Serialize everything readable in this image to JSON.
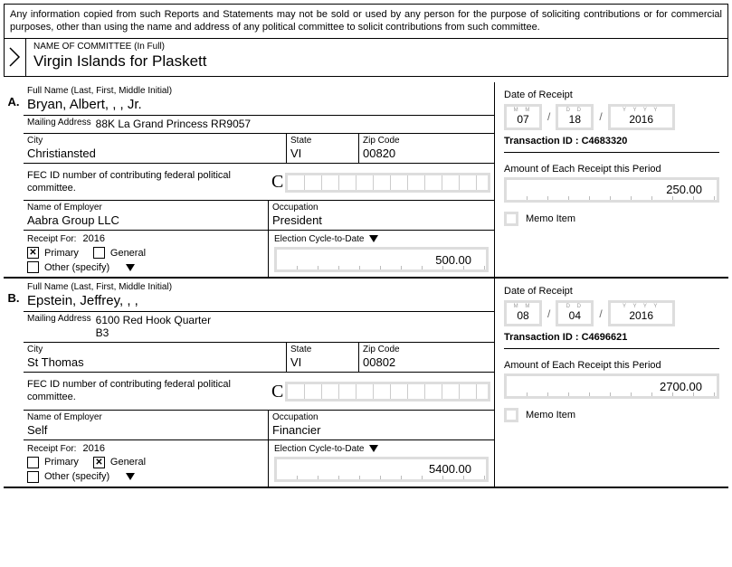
{
  "disclaimer": "Any information copied from such Reports and Statements may not be sold or used by any person for the purpose of soliciting contributions or for commercial purposes, other than using the name and address of any political committee to solicit contributions from such committee.",
  "committee": {
    "label": "NAME OF COMMITTEE (In Full)",
    "name": "Virgin Islands for Plaskett"
  },
  "labels": {
    "full_name": "Full Name (Last, First, Middle Initial)",
    "mailing": "Mailing Address",
    "city": "City",
    "state": "State",
    "zip": "Zip Code",
    "fec_id": "FEC ID number of contributing federal political committee.",
    "employer": "Name of Employer",
    "occupation": "Occupation",
    "receipt_for": "Receipt For:",
    "primary": "Primary",
    "general": "General",
    "other": "Other (specify)",
    "ecd": "Election Cycle-to-Date",
    "date_receipt": "Date of Receipt",
    "txn_id": "Transaction ID :",
    "amount_each": "Amount of Each Receipt this Period",
    "memo": "Memo Item",
    "m_hint": "M   M",
    "d_hint": "D   D",
    "y_hint": "Y  Y  Y  Y"
  },
  "entries": [
    {
      "letter": "A.",
      "name": "Bryan, Albert, , , Jr.",
      "mailing": "88K La Grand Princess RR9057",
      "city": "Christiansted",
      "state": "VI",
      "zip": "00820",
      "employer": "Aabra Group LLC",
      "occupation": "President",
      "receipt_year": "2016",
      "primary_checked": true,
      "general_checked": false,
      "ecd": "500.00",
      "date": {
        "m": "07",
        "d": "18",
        "y": "2016"
      },
      "txn": "C4683320",
      "amount": "250.00"
    },
    {
      "letter": "B.",
      "name": "Epstein, Jeffrey, , ,",
      "mailing": "6100 Red Hook Quarter B3",
      "city": "St Thomas",
      "state": "VI",
      "zip": "00802",
      "employer": "Self",
      "occupation": "Financier",
      "receipt_year": "2016",
      "primary_checked": false,
      "general_checked": true,
      "ecd": "5400.00",
      "date": {
        "m": "08",
        "d": "04",
        "y": "2016"
      },
      "txn": "C4696621",
      "amount": "2700.00"
    }
  ]
}
